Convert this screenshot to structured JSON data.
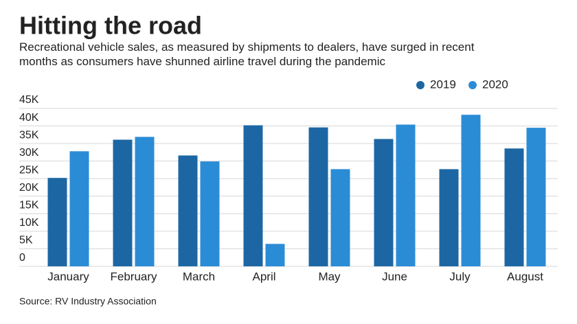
{
  "chart_data": {
    "type": "bar",
    "title": "Hitting the road",
    "subtitle": "Recreational vehicle sales, as measured by shipments to dealers, have surged in recent months as consumers have shunned airline travel during the pandemic",
    "source": "Source: RV Industry Association",
    "categories": [
      "January",
      "February",
      "March",
      "April",
      "May",
      "June",
      "July",
      "August"
    ],
    "series": [
      {
        "name": "2019",
        "color": "#1c67a3",
        "values": [
          25200,
          36100,
          31600,
          40200,
          39600,
          36300,
          27700,
          33600
        ]
      },
      {
        "name": "2020",
        "color": "#2b8cd6",
        "values": [
          32800,
          36900,
          29900,
          6400,
          27700,
          40400,
          43200,
          39500
        ]
      }
    ],
    "ylim": [
      0,
      45000
    ],
    "yticks": [
      0,
      {
        "value": 5000,
        "label": "5K"
      },
      {
        "value": 10000,
        "label": "10K"
      },
      {
        "value": 15000,
        "label": "15K"
      },
      {
        "value": 20000,
        "label": "20K"
      },
      {
        "value": 25000,
        "label": "25K"
      },
      {
        "value": 30000,
        "label": "30K"
      },
      {
        "value": 35000,
        "label": "35K"
      },
      {
        "value": 40000,
        "label": "40K"
      },
      {
        "value": 45000,
        "label": "45K"
      }
    ],
    "grid": true,
    "legend": "top-right"
  }
}
